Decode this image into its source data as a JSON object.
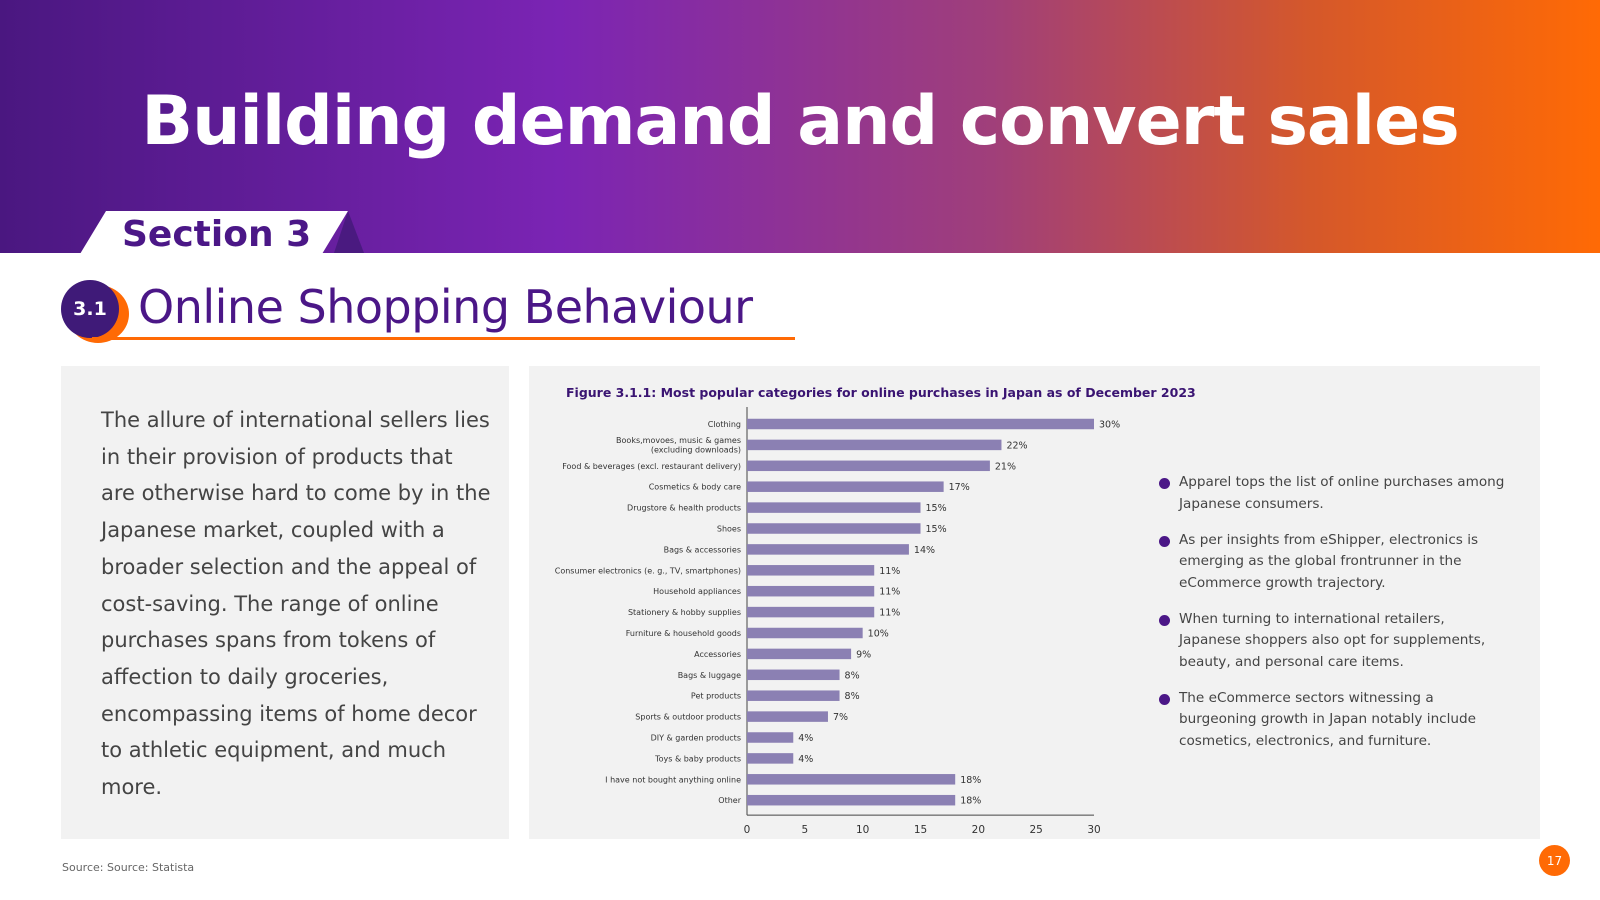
{
  "header": {
    "title": "Building demand and convert sales",
    "section_label": "Section 3"
  },
  "subsection": {
    "number": "3.1",
    "title": "Online Shopping Behaviour"
  },
  "intro_text": "The allure of international sellers lies in their provision of products that are otherwise hard to come by in the Japanese market, coupled with a broader selection and the appeal of cost-saving. The range of online purchases spans from tokens of affection to daily groceries, encompassing items of home decor to athletic equipment, and much more.",
  "figure_title": "Figure 3.1.1: Most popular categories for online purchases in Japan as of December 2023",
  "chart_data": {
    "type": "bar",
    "orientation": "horizontal",
    "categories": [
      "Clothing",
      "Books,movoes, music & games\n(excluding downloads)",
      "Food & beverages (excl. restaurant delivery)",
      "Cosmetics & body care",
      "Drugstore & health products",
      "Shoes",
      "Bags & accessories",
      "Consumer electronics (e. g., TV, smartphones)",
      "Household appliances",
      "Stationery & hobby supplies",
      "Furniture & household goods",
      "Accessories",
      "Bags & luggage",
      "Pet products",
      "Sports & outdoor products",
      "DIY & garden products",
      "Toys & baby products",
      "I have not bought anything online",
      "Other"
    ],
    "values": [
      30,
      22,
      21,
      17,
      15,
      15,
      14,
      11,
      11,
      11,
      10,
      9,
      8,
      8,
      7,
      4,
      4,
      18,
      18
    ],
    "value_labels": [
      "30%",
      "22%",
      "21%",
      "17%",
      "15%",
      "15%",
      "14%",
      "11%",
      "11%",
      "11%",
      "10%",
      "9%",
      "8%",
      "8%",
      "7%",
      "4%",
      "4%",
      "18%",
      "18%"
    ],
    "xticks": [
      "0",
      "5",
      "10",
      "15",
      "20",
      "25",
      "30"
    ],
    "xlim": [
      0,
      30
    ],
    "bar_color": "#8b80b3",
    "grid": false,
    "legend": "none"
  },
  "bullets": [
    "Apparel tops the list of online purchases among Japanese consumers.",
    "As per insights from eShipper, electronics is emerging as the global frontrunner in the eCommerce growth trajectory.",
    "When turning to international retailers, Japanese shoppers also opt for supplements, beauty, and personal care items.",
    "The eCommerce sectors witnessing a burgeoning growth in Japan notably include cosmetics, electronics, and furniture."
  ],
  "source": "Source:  Source: Statista",
  "page_number": "17",
  "colors": {
    "brand_purple": "#4b1787",
    "brand_orange": "#ff6a05",
    "card_bg": "#f2f2f2"
  }
}
